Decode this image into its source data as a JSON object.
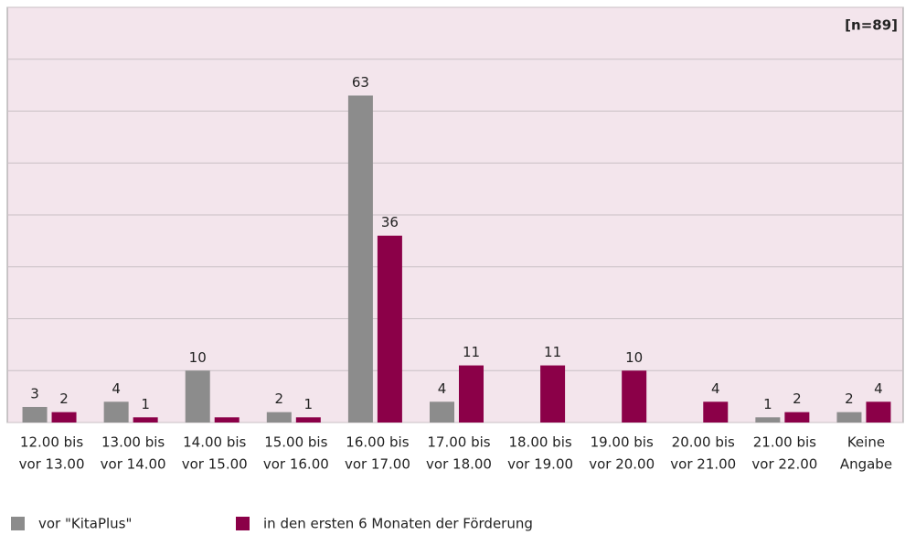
{
  "chart_data": {
    "type": "bar",
    "title": "[n=89]",
    "categories": [
      [
        "12.00 bis",
        "vor 13.00"
      ],
      [
        "13.00 bis",
        "vor 14.00"
      ],
      [
        "14.00 bis",
        "vor 15.00"
      ],
      [
        "15.00 bis",
        "vor 16.00"
      ],
      [
        "16.00 bis",
        "vor 17.00"
      ],
      [
        "17.00 bis",
        "vor 18.00"
      ],
      [
        "18.00 bis",
        "vor 19.00"
      ],
      [
        "19.00 bis",
        "vor 20.00"
      ],
      [
        "20.00 bis",
        "vor 21.00"
      ],
      [
        "21.00 bis",
        "vor 22.00"
      ],
      [
        "Keine",
        "Angabe"
      ]
    ],
    "series": [
      {
        "name": "vor \"KitaPlus\"",
        "color": "#8c8c8c",
        "values": [
          3,
          4,
          10,
          2,
          63,
          4,
          null,
          null,
          null,
          1,
          2
        ],
        "value_labels": [
          "3",
          "4",
          "10",
          "2",
          "63",
          "4",
          null,
          null,
          null,
          "1",
          "2"
        ]
      },
      {
        "name": "in den ersten 6 Monaten der Förderung",
        "color": "#8b0048",
        "values": [
          2,
          1,
          1,
          1,
          36,
          11,
          11,
          10,
          4,
          2,
          4
        ],
        "value_labels": [
          "2",
          "1",
          null,
          "1",
          "36",
          "11",
          "11",
          "10",
          "4",
          "2",
          "4"
        ]
      }
    ],
    "ylim": [
      0,
      80
    ],
    "yticks": [
      0,
      10,
      20,
      30,
      40,
      50,
      60,
      70,
      80
    ],
    "grid": true,
    "legend": "bottom"
  }
}
